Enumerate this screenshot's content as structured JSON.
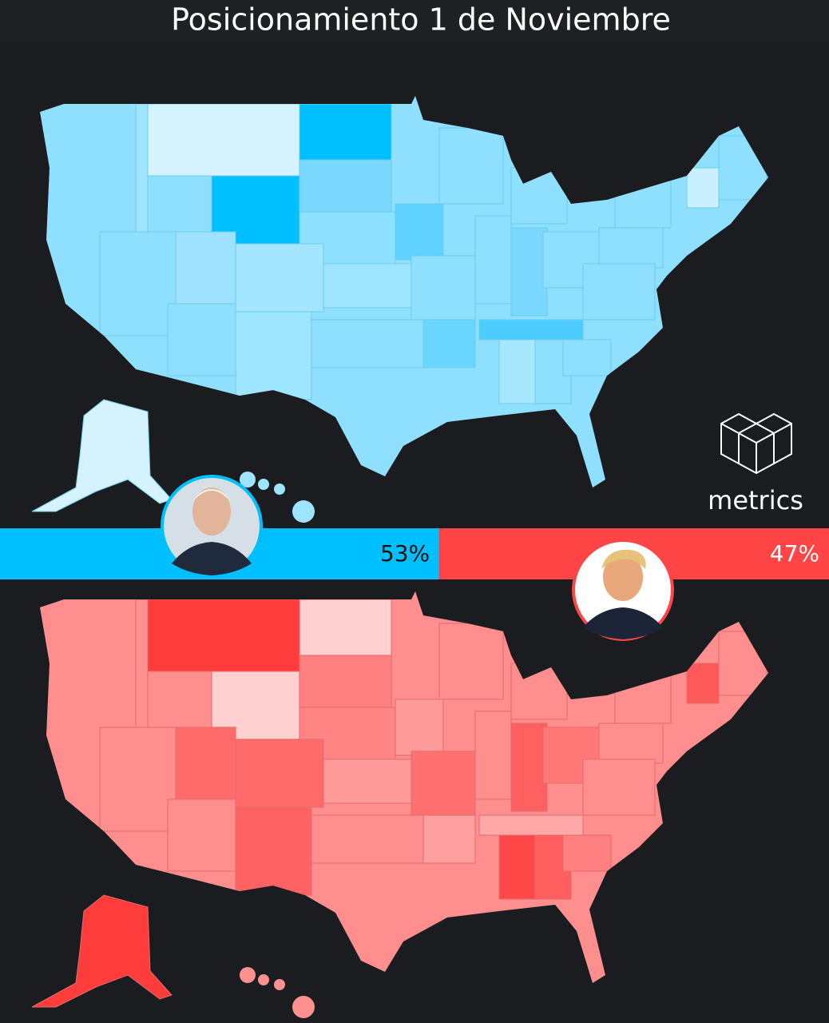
{
  "title": "Posicionamiento 1 de Noviembre",
  "brand": "metrics",
  "vote_bar": {
    "type": "bar",
    "values": [
      53,
      47
    ],
    "value_labels": [
      "53%",
      "47%"
    ],
    "colors": [
      "#00bfff",
      "#ff4545"
    ]
  }
}
